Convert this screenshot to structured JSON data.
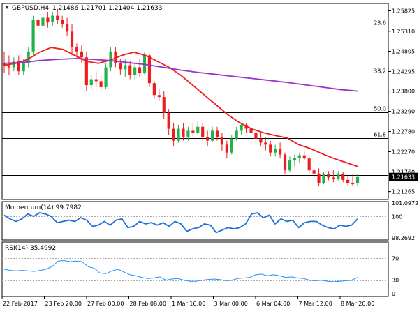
{
  "header": {
    "symbol_label": "GBPUSD,H4",
    "ohlc_label": "1.21486 1.21701 1.21404 1.21633"
  },
  "chart_data": {
    "type": "candlestick",
    "price_axis": {
      "ticks": [
        "1.25825",
        "1.25310",
        "1.24805",
        "1.24295",
        "1.23800",
        "1.23290",
        "1.22780",
        "1.22270",
        "1.21760",
        "1.21265"
      ],
      "ylim": [
        1.21065,
        1.2601
      ],
      "current_price": "1.21633"
    },
    "fibonacci_levels": [
      {
        "label": "23.6",
        "price": 1.2543
      },
      {
        "label": "38.2",
        "price": 1.2422
      },
      {
        "label": "50.0",
        "price": 1.2326
      },
      {
        "label": "61.8",
        "price": 1.2261
      },
      {
        "label": "",
        "price": 1.2168
      }
    ],
    "x_axis_ticks": [
      "22 Feb 2017",
      "23 Feb 20:00",
      "27 Feb 00:00",
      "28 Feb 08:00",
      "1 Mar 16:00",
      "3 Mar 00:00",
      "6 Mar 04:00",
      "7 Mar 12:00",
      "8 Mar 20:00"
    ],
    "candles": [
      [
        1.245,
        1.248,
        1.2425,
        1.2445
      ],
      [
        1.2445,
        1.247,
        1.242,
        1.244
      ],
      [
        1.244,
        1.2465,
        1.243,
        1.2455
      ],
      [
        1.2455,
        1.247,
        1.242,
        1.243
      ],
      [
        1.243,
        1.246,
        1.242,
        1.245
      ],
      [
        1.245,
        1.249,
        1.244,
        1.248
      ],
      [
        1.248,
        1.257,
        1.247,
        1.256
      ],
      [
        1.256,
        1.2585,
        1.253,
        1.2545
      ],
      [
        1.2545,
        1.2575,
        1.2535,
        1.2565
      ],
      [
        1.2565,
        1.258,
        1.254,
        1.2555
      ],
      [
        1.2555,
        1.258,
        1.2545,
        1.257
      ],
      [
        1.257,
        1.2585,
        1.255,
        1.256
      ],
      [
        1.256,
        1.257,
        1.254,
        1.255
      ],
      [
        1.255,
        1.2565,
        1.252,
        1.253
      ],
      [
        1.253,
        1.255,
        1.247,
        1.249
      ],
      [
        1.249,
        1.25,
        1.246,
        1.248
      ],
      [
        1.248,
        1.2495,
        1.245,
        1.2465
      ],
      [
        1.2465,
        1.248,
        1.238,
        1.2395
      ],
      [
        1.2395,
        1.242,
        1.2385,
        1.241
      ],
      [
        1.241,
        1.243,
        1.239,
        1.2405
      ],
      [
        1.2405,
        1.242,
        1.238,
        1.239
      ],
      [
        1.239,
        1.245,
        1.2385,
        1.244
      ],
      [
        1.244,
        1.249,
        1.243,
        1.248
      ],
      [
        1.248,
        1.249,
        1.244,
        1.245
      ],
      [
        1.245,
        1.246,
        1.242,
        1.2435
      ],
      [
        1.2435,
        1.246,
        1.2415,
        1.2445
      ],
      [
        1.2445,
        1.2455,
        1.241,
        1.242
      ],
      [
        1.242,
        1.245,
        1.241,
        1.244
      ],
      [
        1.244,
        1.246,
        1.2415,
        1.2425
      ],
      [
        1.2425,
        1.248,
        1.242,
        1.247
      ],
      [
        1.247,
        1.2475,
        1.239,
        1.24
      ],
      [
        1.24,
        1.2405,
        1.236,
        1.237
      ],
      [
        1.237,
        1.2385,
        1.2355,
        1.2365
      ],
      [
        1.2365,
        1.238,
        1.231,
        1.2325
      ],
      [
        1.2325,
        1.2335,
        1.227,
        1.2285
      ],
      [
        1.2285,
        1.23,
        1.224,
        1.2255
      ],
      [
        1.2255,
        1.2295,
        1.225,
        1.2285
      ],
      [
        1.2285,
        1.23,
        1.2255,
        1.2265
      ],
      [
        1.2265,
        1.229,
        1.2255,
        1.228
      ],
      [
        1.228,
        1.23,
        1.2265,
        1.2275
      ],
      [
        1.2275,
        1.2305,
        1.227,
        1.229
      ],
      [
        1.229,
        1.23,
        1.2255,
        1.2265
      ],
      [
        1.2265,
        1.228,
        1.224,
        1.2255
      ],
      [
        1.2255,
        1.229,
        1.225,
        1.228
      ],
      [
        1.228,
        1.229,
        1.2255,
        1.2265
      ],
      [
        1.2265,
        1.2275,
        1.223,
        1.2245
      ],
      [
        1.2245,
        1.2255,
        1.221,
        1.2225
      ],
      [
        1.2225,
        1.227,
        1.222,
        1.226
      ],
      [
        1.226,
        1.229,
        1.2255,
        1.228
      ],
      [
        1.228,
        1.23,
        1.227,
        1.2295
      ],
      [
        1.2295,
        1.23,
        1.2275,
        1.2285
      ],
      [
        1.2285,
        1.2295,
        1.2265,
        1.2275
      ],
      [
        1.2275,
        1.2285,
        1.225,
        1.226
      ],
      [
        1.226,
        1.2275,
        1.224,
        1.225
      ],
      [
        1.225,
        1.2265,
        1.223,
        1.2245
      ],
      [
        1.2245,
        1.2255,
        1.2215,
        1.2225
      ],
      [
        1.2225,
        1.2245,
        1.2215,
        1.2235
      ],
      [
        1.2235,
        1.225,
        1.221,
        1.222
      ],
      [
        1.222,
        1.2225,
        1.217,
        1.218
      ],
      [
        1.218,
        1.2215,
        1.2175,
        1.2205
      ],
      [
        1.2205,
        1.222,
        1.219,
        1.2212
      ],
      [
        1.2212,
        1.2225,
        1.22,
        1.2218
      ],
      [
        1.2218,
        1.2228,
        1.2205,
        1.221
      ],
      [
        1.221,
        1.2215,
        1.217,
        1.218
      ],
      [
        1.218,
        1.219,
        1.216,
        1.2172
      ],
      [
        1.2172,
        1.2185,
        1.214,
        1.2148
      ],
      [
        1.2148,
        1.2175,
        1.2145,
        1.217
      ],
      [
        1.217,
        1.2178,
        1.2155,
        1.2162
      ],
      [
        1.2162,
        1.218,
        1.215,
        1.2158
      ],
      [
        1.2158,
        1.2178,
        1.2155,
        1.217
      ],
      [
        1.217,
        1.2176,
        1.215,
        1.2156
      ],
      [
        1.2156,
        1.2165,
        1.214,
        1.2148
      ],
      [
        1.2148,
        1.217,
        1.214,
        1.2145
      ],
      [
        1.2148,
        1.217,
        1.214,
        1.2163
      ]
    ],
    "moving_averages": [
      {
        "color": "#ee1c1c",
        "values": [
          1.2445,
          1.245,
          1.246,
          1.2478,
          1.249,
          1.2485,
          1.247,
          1.2455,
          1.245,
          1.2458,
          1.247,
          1.2478,
          1.247,
          1.2455,
          1.244,
          1.242,
          1.2395,
          1.237,
          1.2345,
          1.232,
          1.23,
          1.2285,
          1.2275,
          1.2268,
          1.2262,
          1.2245,
          1.2235,
          1.2222,
          1.221,
          1.22,
          1.219
        ]
      },
      {
        "color": "#9932cc",
        "values": [
          1.245,
          1.2452,
          1.2457,
          1.246,
          1.2462,
          1.246,
          1.2457,
          1.2452,
          1.2447,
          1.244,
          1.2433,
          1.2427,
          1.2422,
          1.2417,
          1.2412,
          1.2407,
          1.2402,
          1.2396,
          1.239,
          1.2384,
          1.238
        ]
      }
    ],
    "momentum_panel": {
      "label": "Momentum(14) 99.7982",
      "ticks": [
        "101.0972",
        "100",
        "98.2692"
      ],
      "ylim": [
        98.1,
        101.2
      ],
      "reference": 100,
      "values": [
        100.1,
        99.8,
        99.6,
        99.8,
        100.2,
        100.0,
        100.3,
        100.2,
        100.0,
        99.5,
        99.6,
        99.7,
        99.6,
        99.9,
        99.7,
        99.2,
        99.3,
        99.6,
        99.3,
        99.7,
        99.8,
        99.1,
        99.2,
        99.6,
        99.4,
        99.5,
        99.3,
        99.5,
        99.2,
        99.6,
        99.4,
        98.8,
        99.0,
        99.1,
        99.4,
        99.3,
        98.7,
        98.9,
        99.1,
        99.0,
        99.1,
        99.4,
        100.2,
        100.3,
        99.9,
        100.1,
        99.4,
        99.8,
        99.6,
        99.7,
        99.1,
        99.5,
        99.6,
        99.6,
        99.3,
        99.1,
        99.0,
        99.3,
        99.2,
        99.3,
        99.8
      ]
    },
    "rsi_panel": {
      "label": "RSI(14) 35.4992",
      "ticks": [
        "70",
        "30",
        "0"
      ],
      "ylim": [
        0,
        100
      ],
      "levels": [
        70,
        30
      ],
      "values": [
        50,
        48,
        47,
        48,
        47,
        46,
        48,
        50,
        55,
        65,
        66,
        64,
        65,
        64,
        55,
        52,
        43,
        42,
        47,
        50,
        45,
        40,
        38,
        35,
        33,
        34,
        36,
        30,
        32,
        33,
        30,
        28,
        28,
        30,
        31,
        32,
        31,
        29,
        30,
        33,
        34,
        35,
        40,
        41,
        38,
        40,
        38,
        35,
        36,
        34,
        33,
        30,
        29,
        30,
        28,
        27,
        28,
        29,
        30,
        35
      ]
    }
  }
}
